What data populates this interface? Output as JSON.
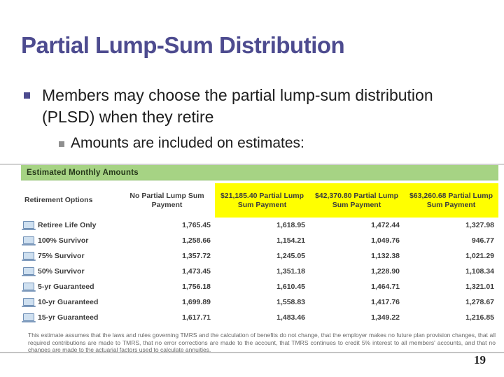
{
  "slide": {
    "title": "Partial Lump-Sum Distribution",
    "bullet1": "Members may choose the partial lump-sum distribution (PLSD) when they retire",
    "bullet2": "Amounts are included on estimates:",
    "page_number": "19"
  },
  "table": {
    "banner": "Estimated Monthly Amounts",
    "columns": [
      "Retirement Options",
      "No Partial Lump Sum Payment",
      "$21,185.40 Partial Lump Sum Payment",
      "$42,370.80 Partial Lump Sum Payment",
      "$63,260.68 Partial Lump Sum Payment"
    ],
    "rows": [
      {
        "option": "Retiree Life Only",
        "values": [
          "1,765.45",
          "1,618.95",
          "1,472.44",
          "1,327.98"
        ]
      },
      {
        "option": "100% Survivor",
        "values": [
          "1,258.66",
          "1,154.21",
          "1,049.76",
          "946.77"
        ]
      },
      {
        "option": "75% Survivor",
        "values": [
          "1,357.72",
          "1,245.05",
          "1,132.38",
          "1,021.29"
        ]
      },
      {
        "option": "50% Survivor",
        "values": [
          "1,473.45",
          "1,351.18",
          "1,228.90",
          "1,108.34"
        ]
      },
      {
        "option": "5-yr Guaranteed",
        "values": [
          "1,756.18",
          "1,610.45",
          "1,464.71",
          "1,321.01"
        ]
      },
      {
        "option": "10-yr Guaranteed",
        "values": [
          "1,699.89",
          "1,558.83",
          "1,417.76",
          "1,278.67"
        ]
      },
      {
        "option": "15-yr Guaranteed",
        "values": [
          "1,617.71",
          "1,483.46",
          "1,349.22",
          "1,216.85"
        ]
      }
    ],
    "disclaimer": "This estimate assumes that the laws and rules governing TMRS and the calculation of benefits do not change, that the employer makes no future plan provision changes, that all required contributions are made to TMRS, that no error corrections are made to the account, that TMRS continues to credit 5% interest to all members' accounts, and that no changes are made to the actuarial factors used to calculate annuities."
  },
  "colors": {
    "title": "#4d4b8f",
    "banner_bg": "#a6d384",
    "highlight": "#ffff00",
    "body_text": "#1c1c1c",
    "table_text": "#3d3d3d"
  }
}
